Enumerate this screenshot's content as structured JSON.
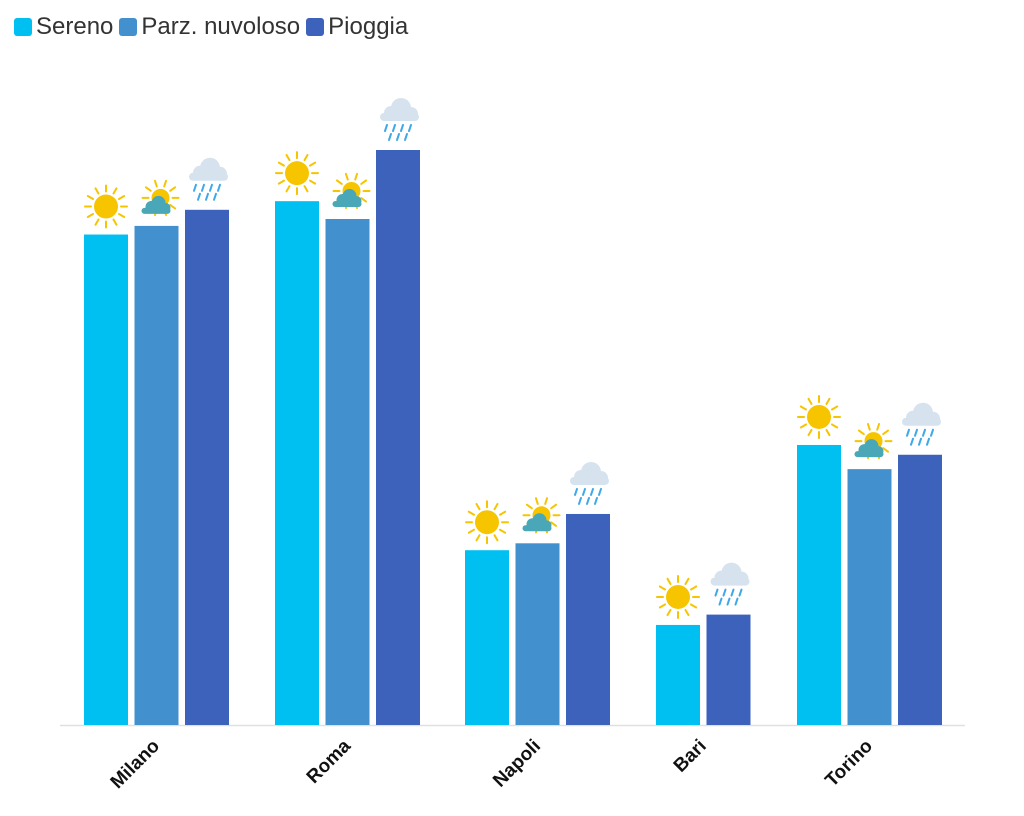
{
  "chart_data": {
    "type": "bar",
    "title": "",
    "xlabel": "",
    "ylabel": "",
    "categories": [
      "Milano",
      "Roma",
      "Napoli",
      "Bari",
      "Torino"
    ],
    "ylim": [
      0,
      100
    ],
    "grid": false,
    "legend_position": "top-left",
    "series": [
      {
        "name": "Sereno",
        "color": "#00c0f2",
        "icon": "sun-icon",
        "values": [
          85.3,
          91.1,
          30.4,
          17.4,
          48.7
        ]
      },
      {
        "name": "Parz. nuvoloso",
        "color": "#4390cf",
        "icon": "partly-cloudy-icon",
        "values": [
          86.8,
          88.0,
          31.6,
          null,
          44.5
        ]
      },
      {
        "name": "Pioggia",
        "color": "#3d62bc",
        "icon": "rain-cloud-icon",
        "values": [
          89.6,
          100.0,
          36.7,
          19.2,
          47.0
        ]
      }
    ]
  }
}
